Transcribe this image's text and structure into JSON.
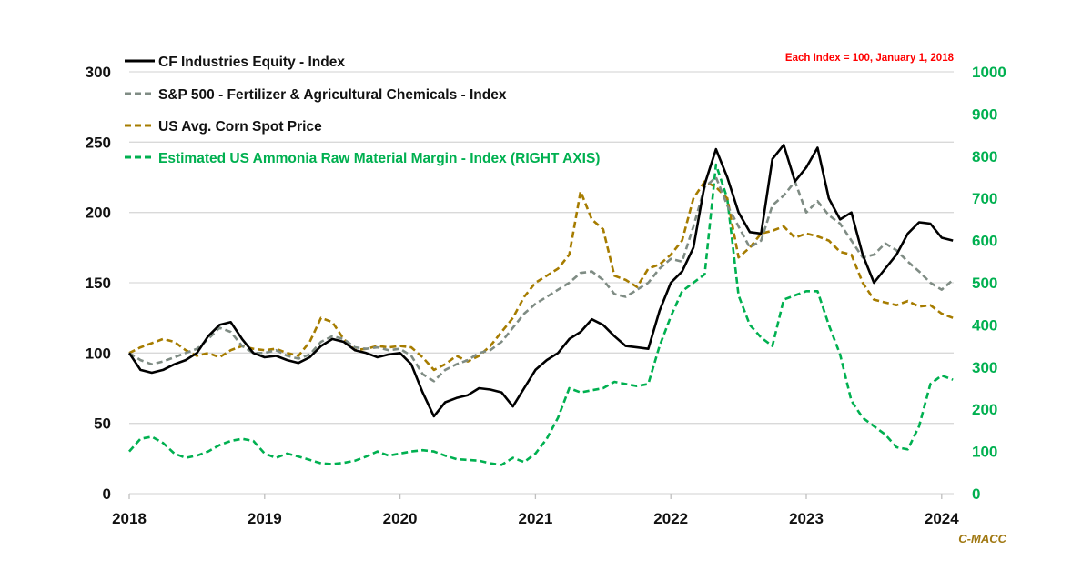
{
  "chart_data": {
    "type": "line",
    "title": "",
    "annotation": "Each Index = 100, January 1, 2018",
    "source": "C-MACC",
    "x_ticks": [
      "2018",
      "2019",
      "2020",
      "2021",
      "2022",
      "2023",
      "2024"
    ],
    "xlim": [
      2018.0,
      2024.1
    ],
    "y_left": {
      "ylim": [
        0,
        300
      ],
      "ticks": [
        "0",
        "50",
        "100",
        "150",
        "200",
        "250",
        "300"
      ]
    },
    "y_right": {
      "ylim": [
        0,
        1000
      ],
      "ticks": [
        "0",
        "100",
        "200",
        "300",
        "400",
        "500",
        "600",
        "700",
        "800",
        "900",
        "1000"
      ]
    },
    "grid": true,
    "legend_position": "top-left",
    "colors": {
      "cf": "#000000",
      "sp": "#7f8c84",
      "corn": "#a67c00",
      "ammonia": "#00b050",
      "grid": "#d9d9d9",
      "note": "#ff0000",
      "source": "#a07812"
    },
    "x": [
      2018.0,
      2018.083,
      2018.167,
      2018.25,
      2018.333,
      2018.417,
      2018.5,
      2018.583,
      2018.667,
      2018.75,
      2018.833,
      2018.917,
      2019.0,
      2019.083,
      2019.167,
      2019.25,
      2019.333,
      2019.417,
      2019.5,
      2019.583,
      2019.667,
      2019.75,
      2019.833,
      2019.917,
      2020.0,
      2020.083,
      2020.167,
      2020.25,
      2020.333,
      2020.417,
      2020.5,
      2020.583,
      2020.667,
      2020.75,
      2020.833,
      2020.917,
      2021.0,
      2021.083,
      2021.167,
      2021.25,
      2021.333,
      2021.417,
      2021.5,
      2021.583,
      2021.667,
      2021.75,
      2021.833,
      2021.917,
      2022.0,
      2022.083,
      2022.167,
      2022.25,
      2022.333,
      2022.417,
      2022.5,
      2022.583,
      2022.667,
      2022.75,
      2022.833,
      2022.917,
      2023.0,
      2023.083,
      2023.167,
      2023.25,
      2023.333,
      2023.417,
      2023.5,
      2023.583,
      2023.667,
      2023.75,
      2023.833,
      2023.917,
      2024.0,
      2024.083
    ],
    "series": [
      {
        "name": "CF Industries Equity - Index",
        "axis": "left",
        "style": "solid",
        "values": [
          100,
          88,
          86,
          88,
          92,
          95,
          100,
          112,
          120,
          122,
          110,
          100,
          97,
          98,
          95,
          93,
          97,
          105,
          110,
          108,
          102,
          100,
          97,
          99,
          100,
          92,
          72,
          55,
          65,
          68,
          70,
          75,
          74,
          72,
          62,
          75,
          88,
          95,
          100,
          110,
          115,
          124,
          120,
          112,
          105,
          104,
          103,
          130,
          150,
          158,
          175,
          220,
          245,
          225,
          200,
          186,
          185,
          238,
          248,
          222,
          232,
          246,
          210,
          195,
          200,
          170,
          150,
          160,
          170,
          185,
          193,
          192,
          182,
          180
        ]
      },
      {
        "name": "S&P 500 - Fertilizer & Agricultural Chemicals - Index",
        "axis": "left",
        "style": "dashed",
        "values": [
          100,
          95,
          92,
          94,
          97,
          100,
          103,
          110,
          118,
          115,
          105,
          100,
          100,
          102,
          98,
          96,
          99,
          108,
          112,
          110,
          104,
          103,
          104,
          102,
          103,
          98,
          85,
          80,
          88,
          92,
          95,
          100,
          102,
          108,
          118,
          128,
          135,
          140,
          145,
          150,
          157,
          158,
          152,
          142,
          140,
          145,
          150,
          160,
          167,
          165,
          190,
          218,
          225,
          205,
          190,
          175,
          180,
          205,
          212,
          222,
          200,
          208,
          198,
          192,
          180,
          168,
          170,
          178,
          173,
          165,
          158,
          150,
          145,
          152
        ]
      },
      {
        "name": "US Avg. Corn Spot Price",
        "axis": "left",
        "style": "dashed",
        "values": [
          100,
          104,
          107,
          110,
          108,
          102,
          98,
          100,
          97,
          102,
          105,
          103,
          102,
          103,
          100,
          98,
          108,
          125,
          122,
          110,
          102,
          103,
          105,
          104,
          105,
          104,
          97,
          88,
          92,
          98,
          94,
          98,
          105,
          115,
          125,
          140,
          150,
          155,
          160,
          170,
          215,
          195,
          188,
          155,
          152,
          147,
          160,
          163,
          170,
          180,
          210,
          222,
          218,
          210,
          168,
          175,
          185,
          187,
          190,
          182,
          185,
          183,
          180,
          172,
          170,
          150,
          138,
          136,
          134,
          137,
          133,
          134,
          128,
          125
        ]
      },
      {
        "name": "Estimated US Ammonia Raw Material Margin - Index (RIGHT AXIS)",
        "axis": "right",
        "style": "dashed",
        "values": [
          100,
          130,
          135,
          120,
          95,
          85,
          90,
          100,
          115,
          125,
          130,
          125,
          95,
          85,
          95,
          88,
          80,
          72,
          70,
          73,
          78,
          88,
          100,
          90,
          95,
          100,
          103,
          100,
          90,
          82,
          80,
          78,
          72,
          68,
          85,
          75,
          95,
          130,
          180,
          250,
          240,
          245,
          250,
          265,
          260,
          255,
          260,
          350,
          420,
          480,
          500,
          520,
          780,
          700,
          470,
          400,
          370,
          350,
          460,
          470,
          480,
          480,
          400,
          330,
          220,
          180,
          160,
          140,
          110,
          105,
          160,
          260,
          280,
          270
        ]
      }
    ]
  }
}
